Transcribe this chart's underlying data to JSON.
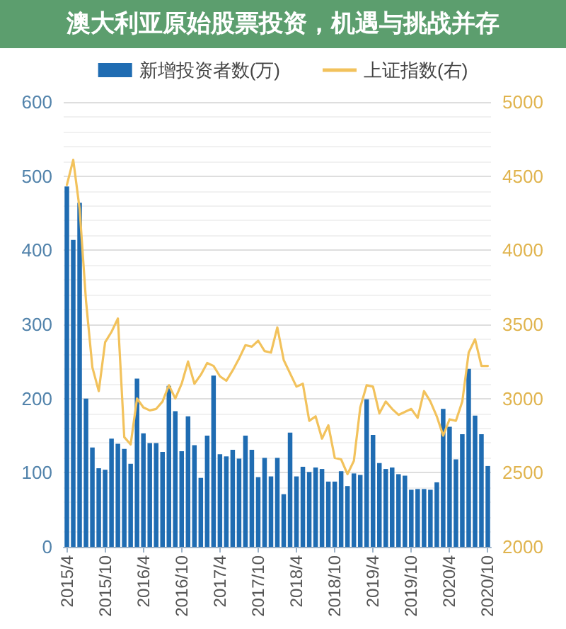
{
  "chart_data": {
    "type": "bar",
    "title": "澳大利亚原始股票投资，机遇与挑战并存",
    "categories": [
      "2015/4",
      null,
      null,
      null,
      null,
      null,
      "2015/10",
      null,
      null,
      null,
      null,
      null,
      "2016/4",
      null,
      null,
      null,
      null,
      null,
      "2016/10",
      null,
      null,
      null,
      null,
      null,
      "2017/4",
      null,
      null,
      null,
      null,
      null,
      "2017/10",
      null,
      null,
      null,
      null,
      null,
      "2018/4",
      null,
      null,
      null,
      null,
      null,
      "2018/10",
      null,
      null,
      null,
      null,
      null,
      "2019/4",
      null,
      null,
      null,
      null,
      null,
      "2019/10",
      null,
      null,
      null,
      null,
      null,
      "2020/4",
      null,
      null,
      null,
      null,
      null,
      "2020/10"
    ],
    "series": [
      {
        "name": "新增投资者数(万)",
        "color": "#1f6cb2",
        "values": [
          486,
          414,
          464,
          200,
          134,
          106,
          104,
          146,
          139,
          132,
          112,
          227,
          153,
          140,
          140,
          128,
          217,
          183,
          129,
          176,
          137,
          93,
          150,
          231,
          125,
          122,
          131,
          119,
          150,
          131,
          94,
          120,
          95,
          120,
          71,
          154,
          95,
          108,
          101,
          107,
          105,
          88,
          88,
          102,
          82,
          99,
          97,
          199,
          151,
          113,
          105,
          107,
          98,
          96,
          77,
          78,
          78,
          77,
          87,
          186,
          162,
          118,
          152,
          240,
          177,
          152,
          109
        ]
      },
      {
        "name": "上证指数(右)",
        "type": "line",
        "axis": "y2",
        "color": "#f2c25c",
        "values": [
          4440,
          4610,
          4280,
          3660,
          3210,
          3050,
          3380,
          3450,
          3540,
          2740,
          2690,
          3000,
          2940,
          2920,
          2930,
          2980,
          3090,
          3000,
          3100,
          3250,
          3100,
          3160,
          3240,
          3220,
          3150,
          3120,
          3190,
          3270,
          3360,
          3350,
          3390,
          3320,
          3310,
          3480,
          3260,
          3170,
          3080,
          3100,
          2850,
          2880,
          2730,
          2820,
          2600,
          2590,
          2490,
          2580,
          2940,
          3090,
          3080,
          2900,
          2980,
          2930,
          2890,
          2910,
          2930,
          2870,
          3050,
          2980,
          2880,
          2750,
          2860,
          2850,
          2980,
          3310,
          3400,
          3220,
          3220
        ]
      }
    ],
    "ylim": [
      0,
      600
    ],
    "yticks": [
      0,
      100,
      200,
      300,
      400,
      500,
      600
    ],
    "y2lim": [
      2000,
      5000
    ],
    "y2ticks": [
      2000,
      2500,
      3000,
      3500,
      4000,
      4500,
      5000
    ],
    "grid": "y",
    "legend": "top"
  }
}
